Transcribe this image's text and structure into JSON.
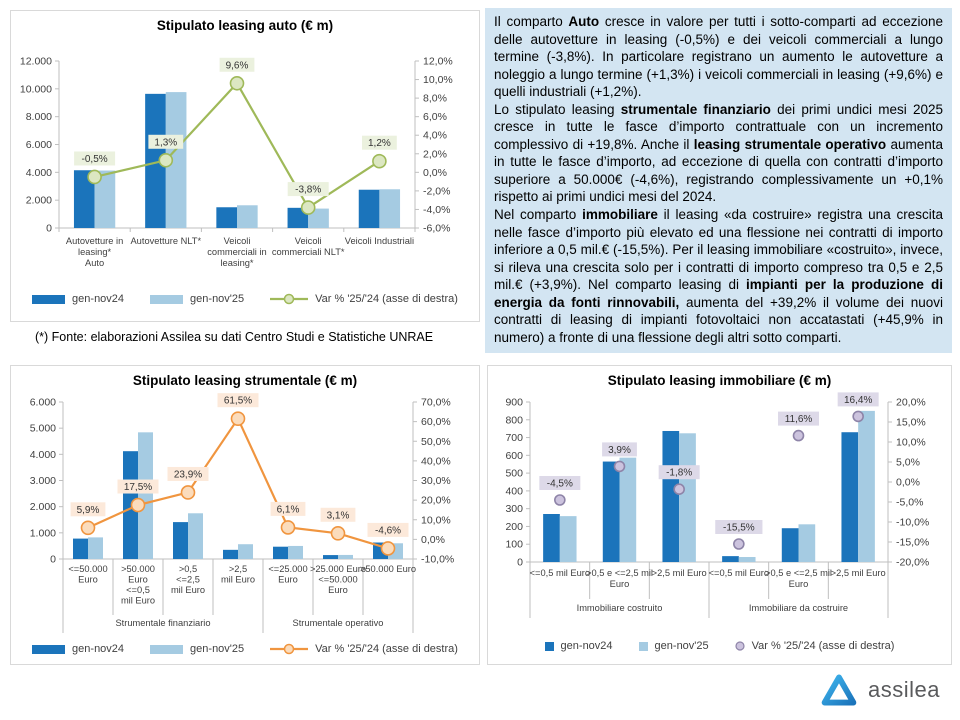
{
  "source_note": "(*) Fonte: elaborazioni Assilea su dati Centro Studi e Statistiche UNRAE",
  "logo": {
    "text": "assilea"
  },
  "text_panel": {
    "paragraphs": [
      [
        {
          "t": "Il comparto "
        },
        {
          "t": "Auto",
          "b": true
        },
        {
          "t": " cresce in valore per tutti i sotto-comparti ad eccezione delle autovetture in leasing (-0,5%) e dei veicoli commerciali a lungo termine (-3,8%). In particolare registrano un aumento le autovetture a noleggio a lungo termine (+1,3%) i veicoli commerciali in leasing (+9,6%) e quelli industriali (+1,2%)."
        }
      ],
      [
        {
          "t": "Lo stipulato leasing "
        },
        {
          "t": "strumentale finanziario",
          "b": true
        },
        {
          "t": " dei primi undici mesi 2025 cresce in tutte le fasce d’importo contrattuale con un incremento complessivo di +19,8%. Anche il "
        },
        {
          "t": "leasing strumentale operativo",
          "b": true
        },
        {
          "t": " aumenta in tutte le fasce d’importo, ad eccezione di quella con contratti d’importo superiore a 50.000€ (-4,6%), registrando complessivamente un +0,1% rispetto ai primi undici mesi del 2024."
        }
      ],
      [
        {
          "t": "Nel comparto "
        },
        {
          "t": "immobiliare",
          "b": true
        },
        {
          "t": " il leasing «da costruire» registra una crescita nelle fasce d’importo più elevato ed una flessione nei contratti di importo inferiore a 0,5 mil.€ (-15,5%). Per il leasing immobiliare «costruito», invece, si rileva una crescita solo per i contratti di importo compreso tra 0,5 e 2,5 mil.€ (+3,9%). Nel comparto leasing di "
        },
        {
          "t": "impianti per la produzione di energia da fonti rinnovabili,",
          "b": true
        },
        {
          "t": " aumenta del +39,2% il volume dei nuovi contratti di leasing di impianti fotovoltaici non accatastati (+45,9% in numero) a fronte di una flessione degli altri sotto comparti."
        }
      ]
    ]
  },
  "chart_data": [
    {
      "id": "auto",
      "type": "bar+line",
      "title": "Stipulato leasing auto (€ m)",
      "categories": [
        [
          "Autovetture in",
          "leasing*",
          "Auto"
        ],
        [
          "Autovetture NLT*"
        ],
        [
          "Veicoli",
          "commerciali in",
          "leasing*"
        ],
        [
          "Veicoli",
          "commerciali NLT*"
        ],
        [
          "Veicoli Industriali"
        ]
      ],
      "series": [
        {
          "name": "gen-nov24",
          "values": [
            4150,
            9640,
            1490,
            1450,
            2750
          ]
        },
        {
          "name": "gen-nov'25",
          "values": [
            4129,
            9765,
            1633,
            1395,
            2783
          ]
        }
      ],
      "var_series": {
        "name": "Var % '25/'24 (asse di destra)",
        "style": "line",
        "values": [
          -0.5,
          1.3,
          9.6,
          -3.8,
          1.2
        ],
        "labels": [
          "-0,5%",
          "1,3%",
          "9,6%",
          "-3,8%",
          "1,2%"
        ]
      },
      "left_axis": {
        "min": 0,
        "max": 12000,
        "ticks": [
          "0",
          "2.000",
          "4.000",
          "6.000",
          "8.000",
          "10.000",
          "12.000"
        ]
      },
      "right_axis": {
        "min": -6,
        "max": 12,
        "ticks": [
          "-6,0%",
          "-4,0%",
          "-2,0%",
          "0,0%",
          "2,0%",
          "4,0%",
          "6,0%",
          "8,0%",
          "10,0%",
          "12,0%"
        ]
      },
      "colors": {
        "series": [
          "#1b74bb",
          "#a5cbe2"
        ],
        "var": "#9fb959",
        "varFill": "#dce7c2",
        "labelBg": "#ebf1de"
      }
    },
    {
      "id": "strumentale",
      "type": "bar+line",
      "title": "Stipulato leasing strumentale (€ m)",
      "categories": [
        [
          "<=50.000",
          "Euro"
        ],
        [
          ">50.000",
          "Euro",
          "<=0,5",
          "mil Euro"
        ],
        [
          ">0,5",
          "<=2,5",
          "mil Euro"
        ],
        [
          ">2,5",
          "mil Euro"
        ],
        [
          "<=25.000",
          "Euro"
        ],
        [
          ">25.000 Euro",
          "<=50.000",
          "Euro"
        ],
        [
          ">50.000 Euro"
        ]
      ],
      "groups": [
        {
          "label": "Strumentale finanziario",
          "from": 0,
          "to": 3
        },
        {
          "label": "Strumentale operativo",
          "from": 4,
          "to": 6
        }
      ],
      "series": [
        {
          "name": "gen-nov24",
          "values": [
            780,
            4120,
            1410,
            350,
            470,
            150,
            630
          ]
        },
        {
          "name": "gen-nov'25",
          "values": [
            826,
            4841,
            1747,
            565,
            499,
            155,
            601
          ]
        }
      ],
      "var_series": {
        "name": "Var % '25/'24 (asse di destra)",
        "style": "line",
        "values": [
          5.9,
          17.5,
          23.9,
          61.5,
          6.1,
          3.1,
          -4.6
        ],
        "labels": [
          "5,9%",
          "17,5%",
          "23,9%",
          "61,5%",
          "6,1%",
          "3,1%",
          "-4,6%"
        ]
      },
      "left_axis": {
        "min": 0,
        "max": 6000,
        "ticks": [
          "0",
          "1.000",
          "2.000",
          "3.000",
          "4.000",
          "5.000",
          "6.000"
        ]
      },
      "right_axis": {
        "min": -10,
        "max": 70,
        "ticks": [
          "-10,0%",
          "0,0%",
          "10,0%",
          "20,0%",
          "30,0%",
          "40,0%",
          "50,0%",
          "60,0%",
          "70,0%"
        ]
      },
      "colors": {
        "series": [
          "#1b74bb",
          "#a5cbe2"
        ],
        "var": "#f0953f",
        "varFill": "#fbdcbc",
        "labelBg": "#fce9da"
      }
    },
    {
      "id": "immobiliare",
      "type": "bar+marker",
      "title": "Stipulato leasing immobiliare (€ m)",
      "categories": [
        [
          "<=0,5 mil Euro"
        ],
        [
          ">0,5 e <=2,5 mil",
          "Euro"
        ],
        [
          ">2,5 mil Euro"
        ],
        [
          "<=0,5 mil Euro"
        ],
        [
          ">0,5 e <=2,5 mil",
          "Euro"
        ],
        [
          ">2,5 mil Euro"
        ]
      ],
      "groups": [
        {
          "label": "Immobiliare costruito",
          "from": 0,
          "to": 2
        },
        {
          "label": "Immobiliare da costruire",
          "from": 3,
          "to": 5
        }
      ],
      "series": [
        {
          "name": "gen-nov24",
          "values": [
            270,
            565,
            737,
            33,
            190,
            730
          ]
        },
        {
          "name": "gen-nov'25",
          "values": [
            258,
            587,
            724,
            28,
            212,
            850
          ]
        }
      ],
      "var_series": {
        "name": "Var % '25/'24 (asse di destra)",
        "style": "marker",
        "values": [
          -4.5,
          3.9,
          -1.8,
          -15.5,
          11.6,
          16.4
        ],
        "labels": [
          "-4,5%",
          "3,9%",
          "-1,8%",
          "-15,5%",
          "11,6%",
          "16,4%"
        ]
      },
      "left_axis": {
        "min": 0,
        "max": 900,
        "ticks": [
          "0",
          "100",
          "200",
          "300",
          "400",
          "500",
          "600",
          "700",
          "800",
          "900"
        ]
      },
      "right_axis": {
        "min": -20,
        "max": 20,
        "ticks": [
          "-20,0%",
          "-15,0%",
          "-10,0%",
          "-5,0%",
          "0,0%",
          "5,0%",
          "10,0%",
          "15,0%",
          "20,0%"
        ]
      },
      "colors": {
        "series": [
          "#1b74bb",
          "#a5cbe2"
        ],
        "var": "#8e84a8",
        "varFill": "#ccc3de",
        "labelBg": "#ddd9e8"
      }
    }
  ]
}
